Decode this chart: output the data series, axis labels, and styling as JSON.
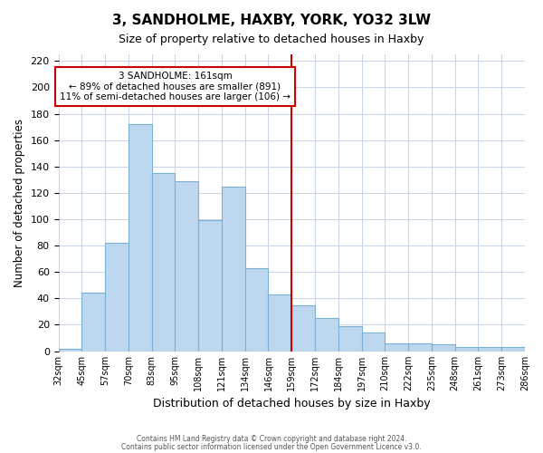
{
  "title": "3, SANDHOLME, HAXBY, YORK, YO32 3LW",
  "subtitle": "Size of property relative to detached houses in Haxby",
  "xlabel": "Distribution of detached houses by size in Haxby",
  "ylabel": "Number of detached properties",
  "tick_labels": [
    "32sqm",
    "45sqm",
    "57sqm",
    "70sqm",
    "83sqm",
    "95sqm",
    "108sqm",
    "121sqm",
    "134sqm",
    "146sqm",
    "159sqm",
    "172sqm",
    "184sqm",
    "197sqm",
    "210sqm",
    "222sqm",
    "235sqm",
    "248sqm",
    "261sqm",
    "273sqm",
    "286sqm"
  ],
  "bar_values": [
    2,
    44,
    82,
    172,
    135,
    129,
    99,
    125,
    63,
    43,
    35,
    25,
    19,
    14,
    6,
    6,
    5,
    3,
    3,
    3
  ],
  "bar_color": "#bdd7ee",
  "bar_edge_color": "#7ab0d4",
  "vline_color": "#cc0000",
  "annotation_title": "3 SANDHOLME: 161sqm",
  "annotation_line1": "← 89% of detached houses are smaller (891)",
  "annotation_line2": "11% of semi-detached houses are larger (106) →",
  "annotation_box_color": "#ffffff",
  "annotation_box_edge": "#cc0000",
  "ylim": [
    0,
    225
  ],
  "yticks": [
    0,
    20,
    40,
    60,
    80,
    100,
    120,
    140,
    160,
    180,
    200,
    220
  ],
  "footer1": "Contains HM Land Registry data © Crown copyright and database right 2024.",
  "footer2": "Contains public sector information licensed under the Open Government Licence v3.0.",
  "bg_color": "#ffffff",
  "grid_color": "#c8d4e8"
}
